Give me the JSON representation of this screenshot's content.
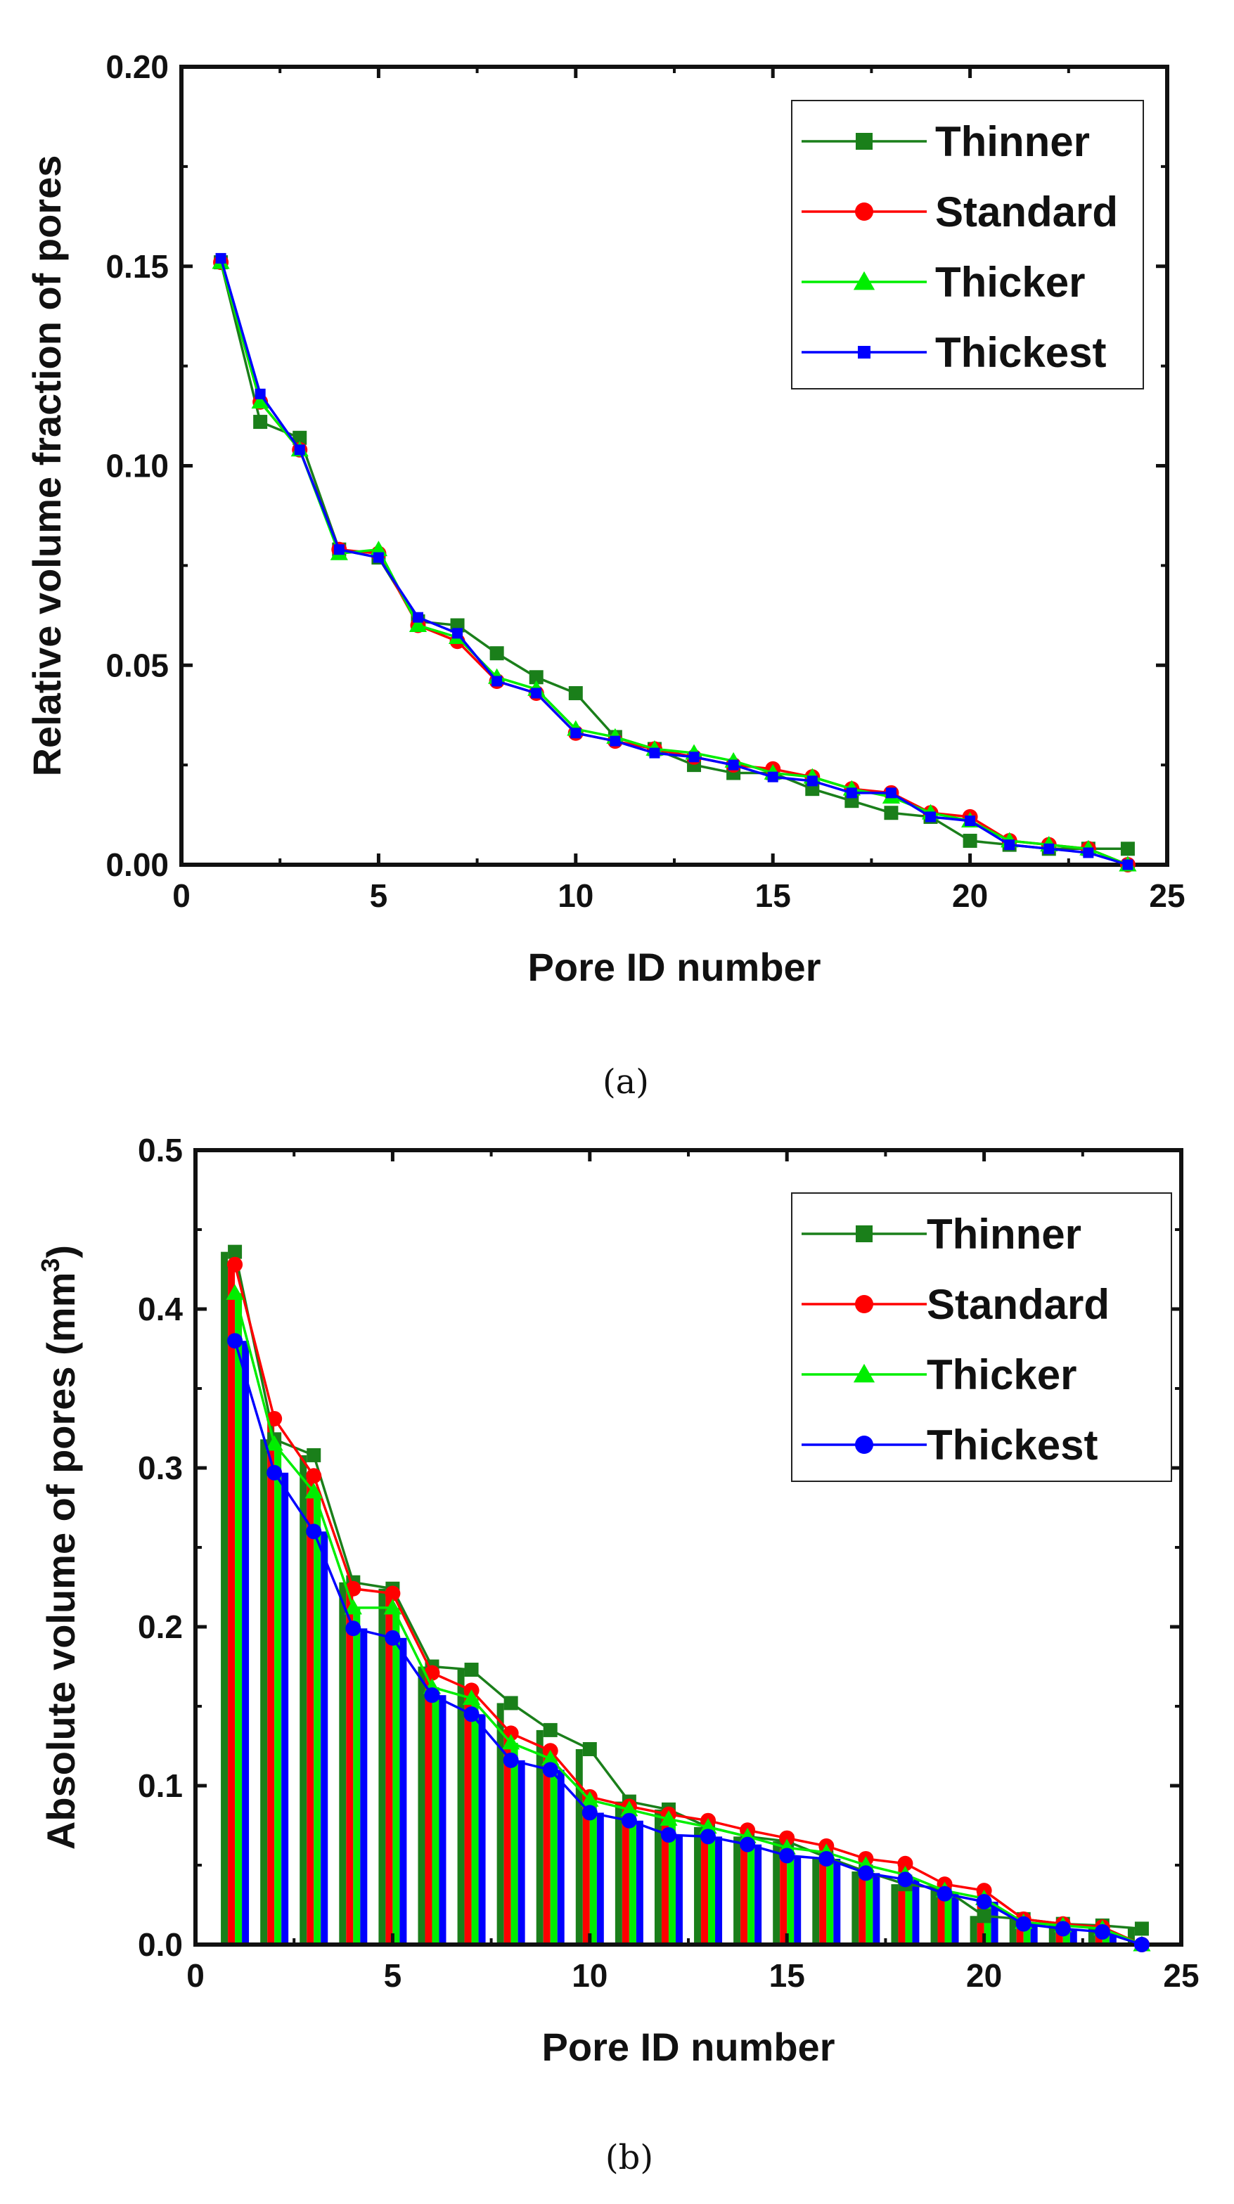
{
  "chart_data": [
    {
      "type": "line",
      "xlabel": "Pore ID number",
      "ylabel": "Relative volume fraction of pores",
      "xlim": [
        0,
        25
      ],
      "ylim": [
        0,
        0.2
      ],
      "xticks": [
        "0",
        "5",
        "10",
        "15",
        "20",
        "25"
      ],
      "yticks": [
        "0.00",
        "0.05",
        "0.10",
        "0.15",
        "0.20"
      ],
      "legend_position": "top-right",
      "caption": "(a)",
      "x": [
        1,
        2,
        3,
        4,
        5,
        6,
        7,
        8,
        9,
        10,
        11,
        12,
        13,
        14,
        15,
        16,
        17,
        18,
        19,
        20,
        21,
        22,
        23,
        24
      ],
      "series": [
        {
          "name": "Thinner",
          "color": "#1a7f1a",
          "marker": "square",
          "values": [
            0.151,
            0.111,
            0.107,
            0.079,
            0.077,
            0.061,
            0.06,
            0.053,
            0.047,
            0.043,
            0.032,
            0.029,
            0.025,
            0.023,
            0.023,
            0.019,
            0.016,
            0.013,
            0.012,
            0.006,
            0.005,
            0.004,
            0.004,
            0.004
          ]
        },
        {
          "name": "Standard",
          "color": "#ff0000",
          "marker": "circle",
          "values": [
            0.151,
            0.116,
            0.104,
            0.079,
            0.078,
            0.06,
            0.056,
            0.046,
            0.043,
            0.033,
            0.031,
            0.029,
            0.027,
            0.025,
            0.024,
            0.022,
            0.019,
            0.018,
            0.013,
            0.012,
            0.006,
            0.005,
            0.004,
            0.0
          ]
        },
        {
          "name": "Thicker",
          "color": "#00ee00",
          "marker": "triangle",
          "values": [
            0.151,
            0.116,
            0.104,
            0.078,
            0.079,
            0.06,
            0.057,
            0.047,
            0.044,
            0.034,
            0.032,
            0.029,
            0.028,
            0.026,
            0.023,
            0.022,
            0.019,
            0.017,
            0.013,
            0.011,
            0.006,
            0.005,
            0.004,
            0.0
          ]
        },
        {
          "name": "Thickest",
          "color": "#0000ff",
          "marker": "small-square",
          "values": [
            0.152,
            0.118,
            0.104,
            0.079,
            0.077,
            0.062,
            0.058,
            0.046,
            0.043,
            0.033,
            0.031,
            0.028,
            0.027,
            0.025,
            0.022,
            0.021,
            0.018,
            0.018,
            0.012,
            0.011,
            0.005,
            0.004,
            0.003,
            0.0
          ]
        }
      ]
    },
    {
      "type": "bar+line",
      "xlabel": "Pore ID number",
      "ylabel_main": "Absolute volume of pores (mm",
      "ylabel_sup": "3",
      "ylabel_tail": ")",
      "xlim": [
        0,
        25
      ],
      "ylim": [
        0,
        0.5
      ],
      "xticks": [
        "0",
        "5",
        "10",
        "15",
        "20",
        "25"
      ],
      "yticks": [
        "0.0",
        "0.1",
        "0.2",
        "0.3",
        "0.4",
        "0.5"
      ],
      "legend_position": "top-right",
      "caption": "(b)",
      "x": [
        1,
        2,
        3,
        4,
        5,
        6,
        7,
        8,
        9,
        10,
        11,
        12,
        13,
        14,
        15,
        16,
        17,
        18,
        19,
        20,
        21,
        22,
        23,
        24
      ],
      "series": [
        {
          "name": "Thinner",
          "color": "#1a7f1a",
          "marker": "square",
          "values": [
            0.436,
            0.318,
            0.308,
            0.228,
            0.224,
            0.175,
            0.173,
            0.152,
            0.135,
            0.123,
            0.09,
            0.085,
            0.074,
            0.068,
            0.065,
            0.055,
            0.046,
            0.038,
            0.035,
            0.018,
            0.016,
            0.013,
            0.012,
            0.01
          ]
        },
        {
          "name": "Standard",
          "color": "#ff0000",
          "marker": "circle",
          "values": [
            0.428,
            0.331,
            0.295,
            0.224,
            0.221,
            0.171,
            0.16,
            0.133,
            0.122,
            0.093,
            0.087,
            0.082,
            0.078,
            0.072,
            0.067,
            0.062,
            0.054,
            0.051,
            0.038,
            0.034,
            0.016,
            0.013,
            0.011,
            0.0
          ]
        },
        {
          "name": "Thicker",
          "color": "#00ee00",
          "marker": "triangle",
          "values": [
            0.41,
            0.315,
            0.285,
            0.212,
            0.212,
            0.162,
            0.155,
            0.127,
            0.117,
            0.091,
            0.085,
            0.079,
            0.074,
            0.068,
            0.061,
            0.058,
            0.05,
            0.044,
            0.034,
            0.029,
            0.014,
            0.012,
            0.01,
            0.0
          ]
        },
        {
          "name": "Thickest",
          "color": "#0000ff",
          "marker": "circle",
          "values": [
            0.38,
            0.297,
            0.26,
            0.199,
            0.193,
            0.157,
            0.145,
            0.116,
            0.11,
            0.083,
            0.078,
            0.069,
            0.068,
            0.063,
            0.056,
            0.054,
            0.045,
            0.041,
            0.032,
            0.027,
            0.013,
            0.01,
            0.008,
            0.0
          ]
        }
      ]
    }
  ]
}
